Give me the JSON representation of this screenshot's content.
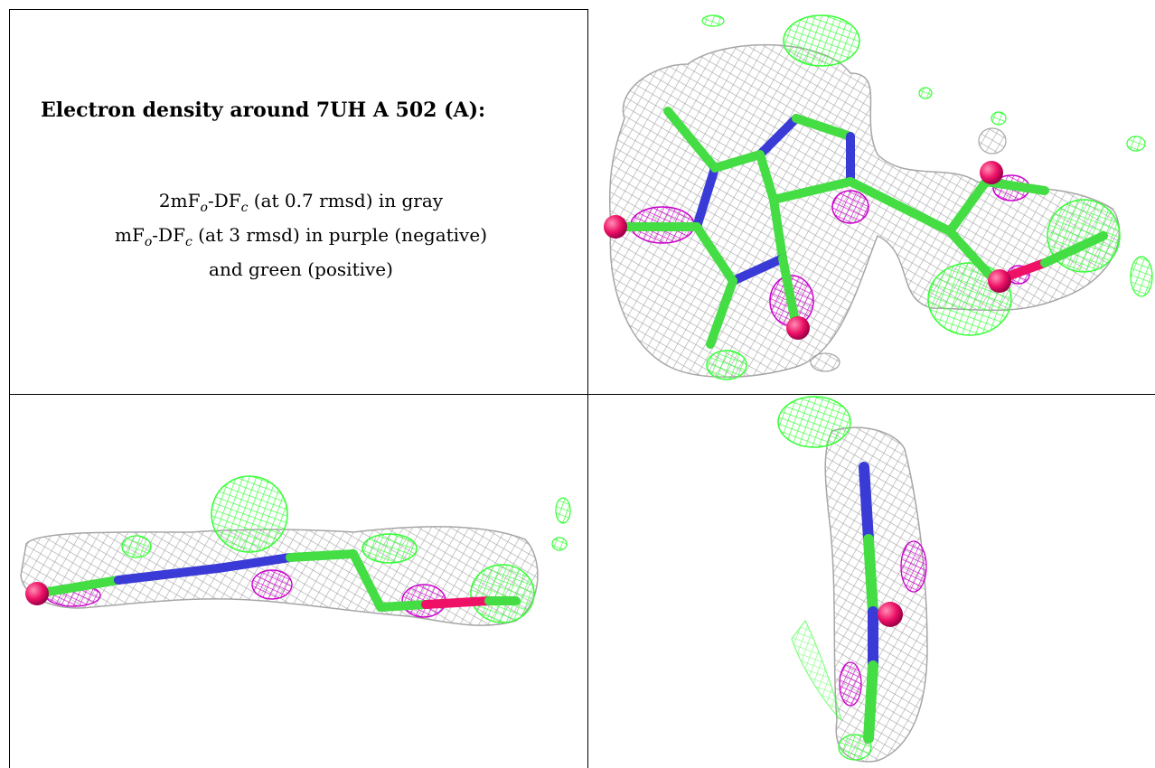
{
  "caption": {
    "title": "Electron density around 7UH A 502 (A):",
    "map1_prefix": "2mF",
    "map1_sub1": "o",
    "map1_mid": "-DF",
    "map1_sub2": "c",
    "map1_suffix": " (at 0.7 rmsd) in gray",
    "map2_prefix": "mF",
    "map2_sub1": "o",
    "map2_mid": "-DF",
    "map2_sub2": "c",
    "map2_suffix": " (at 3 rmsd) in purple (negative)",
    "map2_line2": "and green (positive)"
  },
  "colors": {
    "mesh_gray": "#a6a6a6",
    "positive_green": "#33ff33",
    "negative_purple": "#cc00cc",
    "carbon_green": "#44dd44",
    "nitrogen_blue": "#3a3ad6",
    "oxygen_red": "#ee1166"
  },
  "panels": [
    {
      "name": "caption-panel"
    },
    {
      "name": "top-view-panel"
    },
    {
      "name": "side-view-panel"
    },
    {
      "name": "end-view-panel"
    }
  ]
}
